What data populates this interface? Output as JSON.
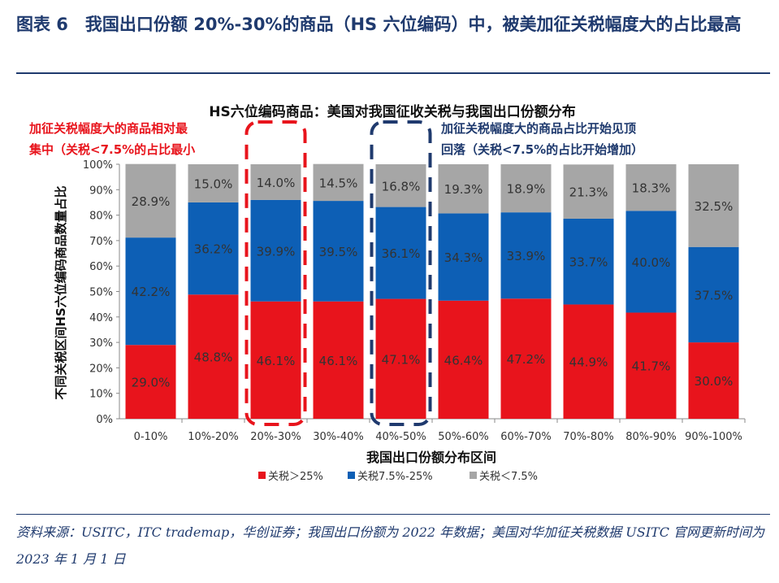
{
  "figure": {
    "title": "图表 6　我国出口份额 20%-30%的商品（HS 六位编码）中，被美加征关税幅度大的占比最高",
    "source": "资料来源：USITC，ITC trademap，华创证券；我国出口份额为 2022 年数据；美国对华加征关税数据 USITC 官网更新时间为 2023 年 1 月 1 日"
  },
  "annotations": {
    "left": [
      "加征关税幅度大的商品相对最",
      "集中（关税<7.5%的占比最小"
    ],
    "right": [
      "加征关税幅度大的商品占比开始见顶",
      "回落（关税<7.5%的占比开始增加）"
    ],
    "left_color": "#e8141c",
    "right_color": "#1f3a6e"
  },
  "chart_data": {
    "type": "bar",
    "stacked": true,
    "title": "HS六位编码商品：美国对我国征收关税与我国出口份额分布",
    "xlabel": "我国出口份额分布区间",
    "ylabel": "不同关税区间HS六位编码商品数量占比",
    "ylim": [
      0,
      100
    ],
    "yticks": [
      "0%",
      "10%",
      "20%",
      "30%",
      "40%",
      "50%",
      "60%",
      "70%",
      "80%",
      "90%",
      "100%"
    ],
    "categories": [
      "0-10%",
      "10%-20%",
      "20%-30%",
      "30%-40%",
      "40%-50%",
      "50%-60%",
      "60%-70%",
      "70%-80%",
      "80%-90%",
      "90%-100%"
    ],
    "legend_position": "bottom",
    "series": [
      {
        "name": "关税＞25%",
        "color": "#e8141c",
        "values": [
          29.0,
          48.8,
          46.1,
          46.1,
          47.1,
          46.4,
          47.2,
          44.9,
          41.7,
          30.0
        ]
      },
      {
        "name": "关税7.5%-25%",
        "color": "#0d5fb5",
        "values": [
          42.2,
          36.2,
          39.9,
          39.5,
          36.1,
          34.3,
          33.9,
          33.7,
          40.0,
          37.5
        ]
      },
      {
        "name": "关税＜7.5%",
        "color": "#a6a6a6",
        "values": [
          28.9,
          15.0,
          14.0,
          14.5,
          16.8,
          19.3,
          18.9,
          21.3,
          18.3,
          32.5
        ]
      }
    ],
    "highlights": [
      {
        "category": "20%-30%",
        "color": "#e8141c"
      },
      {
        "category": "40%-50%",
        "color": "#1f3a6e"
      }
    ]
  }
}
